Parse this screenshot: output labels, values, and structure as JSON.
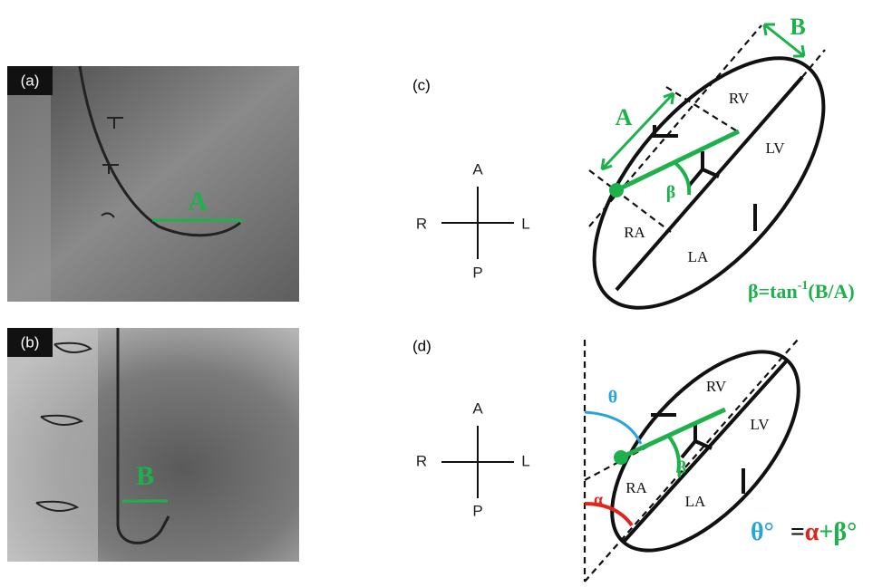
{
  "panel_a": {
    "label": "(a)",
    "marker": "A"
  },
  "panel_b": {
    "label": "(b)",
    "marker": "B"
  },
  "panel_c": {
    "label": "(c)",
    "compass": {
      "anterior": "A",
      "right": "R",
      "left": "L",
      "posterior": "P"
    },
    "chambers": {
      "rv": "RV",
      "lv": "LV",
      "ra": "RA",
      "la": "LA"
    },
    "measure_a": "A",
    "measure_b": "B",
    "angle": "β",
    "formula": {
      "lhs": "β=tan",
      "exponent": "-1",
      "rhs": "(B/A)"
    }
  },
  "panel_d": {
    "label": "(d)",
    "compass": {
      "anterior": "A",
      "right": "R",
      "left": "L",
      "posterior": "P"
    },
    "chambers": {
      "rv": "RV",
      "lv": "LV",
      "ra": "RA",
      "la": "LA"
    },
    "theta": "θ",
    "beta": "β",
    "alpha": "α",
    "formula": {
      "theta": "θ°",
      "equals": "=",
      "alpha": "α",
      "beta": "+β°"
    }
  }
}
